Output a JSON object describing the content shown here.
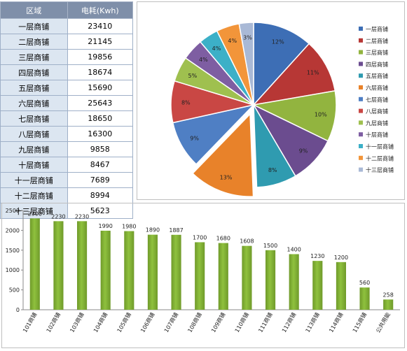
{
  "table": {
    "headers": [
      "区域",
      "电耗(Kwh)"
    ],
    "rows": [
      {
        "area": "一层商铺",
        "value": "23410"
      },
      {
        "area": "二层商铺",
        "value": "21145"
      },
      {
        "area": "三层商铺",
        "value": "19856"
      },
      {
        "area": "四层商铺",
        "value": "18674"
      },
      {
        "area": "五层商铺",
        "value": "15690"
      },
      {
        "area": "六层商铺",
        "value": "25643"
      },
      {
        "area": "七层商铺",
        "value": "18650"
      },
      {
        "area": "八层商铺",
        "value": "16300"
      },
      {
        "area": "九层商铺",
        "value": "9858"
      },
      {
        "area": "十层商铺",
        "value": "8467"
      },
      {
        "area": "十一层商铺",
        "value": "7689"
      },
      {
        "area": "十二层商铺",
        "value": "8994"
      },
      {
        "area": "十三层商铺",
        "value": "5623"
      }
    ]
  },
  "chart_data": [
    {
      "type": "pie",
      "labels": [
        "一层商铺",
        "二层商铺",
        "三层商铺",
        "四层商铺",
        "五层商铺",
        "六层商铺",
        "七层商铺",
        "八层商铺",
        "九层商铺",
        "十层商铺",
        "十一层商铺",
        "十二层商铺",
        "十三层商铺"
      ],
      "values": [
        23410,
        21145,
        19856,
        18674,
        15690,
        25643,
        18650,
        16300,
        9858,
        8467,
        7689,
        8994,
        5623
      ],
      "data_labels": [
        "12%",
        "11%",
        "10%",
        "9%",
        "8%",
        "13%",
        "9%",
        "8%",
        "5%",
        "4%",
        "4%",
        "4%",
        "3%"
      ],
      "colors": [
        "#3d6eb5",
        "#b73735",
        "#92b43f",
        "#6b4c8f",
        "#2f9bb0",
        "#e8822a",
        "#4f7fc4",
        "#c94744",
        "#9fc04f",
        "#7e5ea2",
        "#3cb0c7",
        "#f2953a",
        "#a9b9d6"
      ],
      "exploded_index": 5,
      "legend_position": "right"
    },
    {
      "type": "bar",
      "categories": [
        "101商铺",
        "102商铺",
        "103商铺",
        "104商铺",
        "105商铺",
        "106商铺",
        "107商铺",
        "108商铺",
        "109商铺",
        "110商铺",
        "111商铺",
        "112商铺",
        "113商铺",
        "114商铺",
        "115商铺",
        "公共用能"
      ],
      "values": [
        2300,
        2230,
        2230,
        1990,
        1980,
        1890,
        1887,
        1700,
        1680,
        1608,
        1500,
        1400,
        1230,
        1200,
        560,
        258
      ],
      "ylim": [
        0,
        2500
      ],
      "yticks": [
        0,
        500,
        1000,
        1500,
        2000,
        2500
      ],
      "bar_color": "#8fc13e"
    }
  ]
}
